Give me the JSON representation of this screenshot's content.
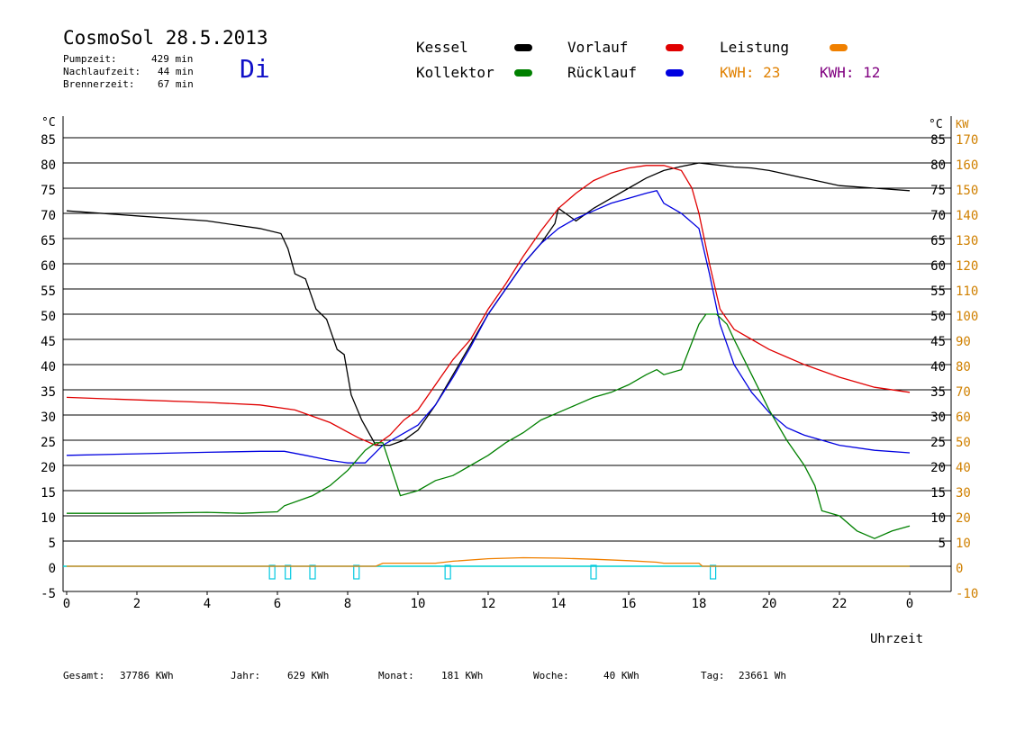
{
  "header": {
    "title": "CosmoSol 28.5.2013",
    "day": "Di",
    "stats": [
      {
        "label": "Pumpzeit:",
        "value": "429 min"
      },
      {
        "label": "Nachlaufzeit:",
        "value": "44 min"
      },
      {
        "label": "Brennerzeit:",
        "value": "67 min"
      }
    ]
  },
  "legend": {
    "items": [
      {
        "label": "Kessel",
        "color": "#000000"
      },
      {
        "label": "Vorlauf",
        "color": "#e00000"
      },
      {
        "label": "Leistung",
        "color": "#f08000"
      },
      {
        "label": "Kollektor",
        "color": "#008000"
      },
      {
        "label": "Rücklauf",
        "color": "#0000e0"
      }
    ],
    "kwh1": {
      "text": "KWH: 23",
      "color": "#e08000"
    },
    "kwh2": {
      "text": "KWH: 12",
      "color": "#800080"
    }
  },
  "footer": {
    "gesamt_label": "Gesamt:",
    "gesamt_value": "37786 KWh",
    "jahr_label": "Jahr:",
    "jahr_value": "629 KWh",
    "monat_label": "Monat:",
    "monat_value": "181 KWh",
    "woche_label": "Woche:",
    "woche_value": "40 KWh",
    "tag_label": "Tag:",
    "tag_value": "23661 Wh"
  },
  "chart_data": {
    "type": "line",
    "xlabel": "Uhrzeit",
    "ylabel_left": "°C",
    "ylabel_right_unit1": "°C",
    "ylabel_right_unit2": "KW",
    "xlim": [
      0,
      24
    ],
    "ylim": [
      -5,
      90
    ],
    "grid": true,
    "x_ticks": [
      "0",
      "2",
      "4",
      "6",
      "8",
      "10",
      "12",
      "14",
      "16",
      "18",
      "20",
      "22",
      "0"
    ],
    "y_ticks_left": [
      "85",
      "80",
      "75",
      "70",
      "65",
      "60",
      "55",
      "50",
      "45",
      "40",
      "35",
      "30",
      "25",
      "20",
      "15",
      "10",
      "5",
      "0",
      "-5"
    ],
    "y_ticks_right_c": [
      "85",
      "80",
      "75",
      "70",
      "65",
      "60",
      "55",
      "50",
      "45",
      "40",
      "35",
      "30",
      "25",
      "20",
      "15",
      "10",
      "5"
    ],
    "y_ticks_right_kw": [
      "170",
      "160",
      "150",
      "140",
      "130",
      "120",
      "110",
      "100",
      "90",
      "80",
      "70",
      "60",
      "50",
      "40",
      "30",
      "20",
      "10",
      "0",
      "-10"
    ],
    "series": [
      {
        "name": "Kessel",
        "color": "#000000",
        "x": [
          0,
          2,
          4,
          5.5,
          6.1,
          6.3,
          6.5,
          6.8,
          7.1,
          7.4,
          7.7,
          7.9,
          8.1,
          8.4,
          8.8,
          9.2,
          9.6,
          10.0,
          10.5,
          11.0,
          11.5,
          12.0,
          12.5,
          13.0,
          13.5,
          13.9,
          14.0,
          14.5,
          15.0,
          15.5,
          16.0,
          16.5,
          17.0,
          17.5,
          18.0,
          18.5,
          19.0,
          19.5,
          20.0,
          21.0,
          22.0,
          23.0,
          24.0
        ],
        "y": [
          70.5,
          69.5,
          68.5,
          67,
          66,
          63,
          58,
          57,
          51,
          49,
          43,
          42,
          34,
          29,
          24,
          24,
          25,
          27,
          32,
          38,
          44,
          50,
          55,
          60,
          64,
          68,
          71,
          68.5,
          71,
          73,
          75,
          77,
          78.5,
          79.3,
          80,
          79.6,
          79.2,
          79,
          78.5,
          77,
          75.5,
          75,
          74.5
        ]
      },
      {
        "name": "Vorlauf",
        "color": "#e00000",
        "x": [
          0,
          2,
          4,
          5.5,
          6.5,
          7.5,
          8.3,
          8.8,
          9.2,
          9.6,
          10.0,
          10.5,
          11.0,
          11.5,
          12.0,
          12.5,
          13.0,
          13.5,
          14.0,
          14.5,
          15.0,
          15.5,
          16.0,
          16.5,
          17.0,
          17.5,
          17.8,
          18.0,
          18.3,
          18.6,
          19.0,
          19.5,
          20.0,
          20.5,
          21.0,
          22.0,
          23.0,
          24.0
        ],
        "y": [
          33.5,
          33,
          32.5,
          32,
          31,
          28.5,
          25.5,
          24,
          26,
          29,
          31,
          36,
          41,
          45,
          51,
          56,
          61.5,
          66.5,
          71,
          74,
          76.5,
          78,
          79,
          79.5,
          79.5,
          78.5,
          75,
          70,
          60,
          51,
          47,
          45,
          43,
          41.5,
          40,
          37.5,
          35.5,
          34.5
        ]
      },
      {
        "name": "Rücklauf",
        "color": "#0000e0",
        "x": [
          0,
          2,
          4,
          5.5,
          6.2,
          6.8,
          7.5,
          8.0,
          8.5,
          9.0,
          9.5,
          10.0,
          10.5,
          11.0,
          11.5,
          12.0,
          12.5,
          13.0,
          13.5,
          14.0,
          14.5,
          15.0,
          15.5,
          16.0,
          16.5,
          16.8,
          17.0,
          17.5,
          18.0,
          18.3,
          18.6,
          19.0,
          19.5,
          20.0,
          20.5,
          21.0,
          22.0,
          23.0,
          24.0
        ],
        "y": [
          22,
          22.3,
          22.6,
          22.8,
          22.8,
          22,
          21,
          20.5,
          20.5,
          24,
          26,
          28,
          32,
          37.5,
          43.5,
          50,
          55,
          60,
          64,
          67,
          69,
          70.5,
          72,
          73,
          74,
          74.5,
          72,
          70,
          67,
          58,
          48,
          40,
          34.5,
          30.5,
          27.5,
          26,
          24,
          23,
          22.5
        ]
      },
      {
        "name": "Kollektor",
        "color": "#008000",
        "x": [
          0,
          2,
          4,
          5,
          6.0,
          6.2,
          7.0,
          7.5,
          8.0,
          8.5,
          8.8,
          9.0,
          9.5,
          10.0,
          10.5,
          11.0,
          11.5,
          12.0,
          12.5,
          13.0,
          13.5,
          14.0,
          14.5,
          15.0,
          15.5,
          16.0,
          16.5,
          16.8,
          17.0,
          17.5,
          18.0,
          18.2,
          18.5,
          18.8,
          19.0,
          19.5,
          20.0,
          20.5,
          21.0,
          21.3,
          21.5,
          22.0,
          22.5,
          23.0,
          23.5,
          24.0
        ],
        "y": [
          10.5,
          10.5,
          10.7,
          10.5,
          10.8,
          12,
          14,
          16,
          19,
          23,
          24.5,
          24.5,
          14,
          15,
          17,
          18,
          20,
          22,
          24.5,
          26.5,
          29,
          30.5,
          32,
          33.5,
          34.5,
          36,
          38,
          39,
          38,
          39,
          48,
          50,
          50,
          48,
          45,
          38,
          31,
          25,
          20,
          16,
          11,
          10,
          7,
          5.5,
          7,
          8
        ]
      },
      {
        "name": "Leistung",
        "color": "#f08000",
        "x": [
          0,
          8.8,
          9.0,
          10.0,
          10.5,
          11.0,
          12.0,
          13.0,
          14.0,
          15.0,
          16.0,
          16.8,
          17.0,
          18.0,
          18.1,
          24.0
        ],
        "y": [
          0,
          0,
          0.6,
          0.6,
          0.6,
          1.0,
          1.5,
          1.7,
          1.6,
          1.4,
          1.1,
          0.8,
          0.6,
          0.6,
          0,
          0
        ]
      }
    ],
    "pump_markers_x": [
      5.85,
      6.3,
      7.0,
      8.25,
      10.85,
      15.0,
      18.4
    ]
  }
}
